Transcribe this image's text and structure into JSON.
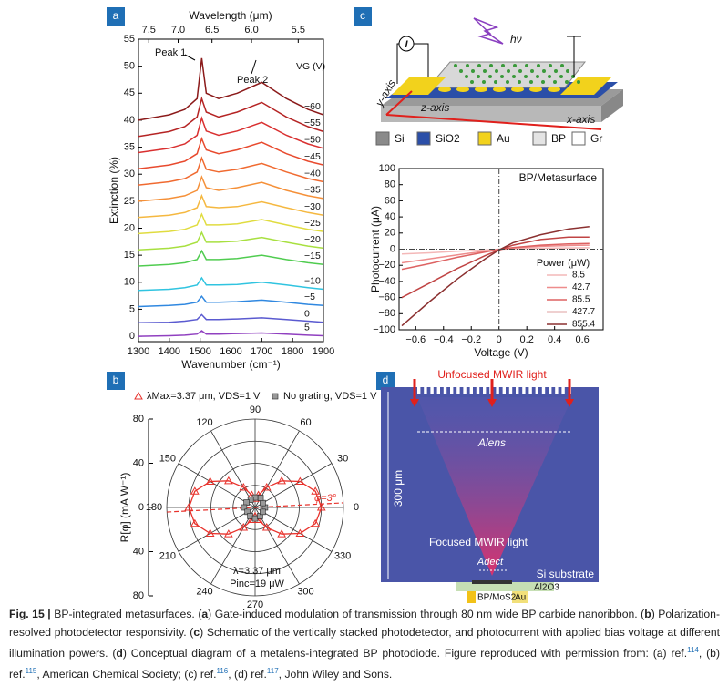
{
  "panel_labels": [
    "a",
    "b",
    "c",
    "d"
  ],
  "chart_data": [
    {
      "type": "line",
      "top_axis_label": "Wavelength (μm)",
      "x_label": "Wavenumber (cm⁻¹)",
      "y_label": "Extinction (%)",
      "xlim": [
        1300,
        1900
      ],
      "ylim": [
        -1,
        55
      ],
      "xticks": [
        1300,
        1400,
        1500,
        1600,
        1700,
        1800,
        1900
      ],
      "yticks": [
        0,
        5,
        10,
        15,
        20,
        25,
        30,
        35,
        40,
        45,
        50,
        55
      ],
      "x2ticks": [
        7.5,
        {
          "value": 7,
          "label": "7.0"
        },
        6.5,
        {
          "value": 6,
          "label": "6.0"
        },
        5.5
      ],
      "legend_title": "VG (V)",
      "annotations": [
        "Peak 1",
        "Peak 2"
      ],
      "x": [
        1300,
        1400,
        1450,
        1490,
        1505,
        1520,
        1560,
        1620,
        1700,
        1780,
        1850,
        1900
      ],
      "series": [
        {
          "name": "−60",
          "color": "#8b1a1a",
          "values": [
            40,
            41,
            42,
            44,
            51.5,
            45,
            44,
            45,
            47,
            44,
            42,
            41
          ]
        },
        {
          "name": "−55",
          "color": "#b52424",
          "values": [
            37,
            37.9,
            38.8,
            40.6,
            44,
            41.5,
            40.6,
            41.5,
            43.3,
            40.6,
            38.8,
            37.9
          ]
        },
        {
          "name": "−50",
          "color": "#d93030",
          "values": [
            34,
            34.8,
            35.6,
            37.2,
            40.4,
            38,
            37.2,
            38,
            39.6,
            37.2,
            35.6,
            34.8
          ]
        },
        {
          "name": "−45",
          "color": "#e84a2e",
          "values": [
            31,
            31.7,
            32.4,
            33.8,
            36.6,
            34.5,
            33.8,
            34.5,
            35.9,
            33.8,
            32.4,
            31.7
          ]
        },
        {
          "name": "−40",
          "color": "#f06a30",
          "values": [
            28,
            28.6,
            29.2,
            30.4,
            33,
            30.9,
            30.4,
            30.9,
            32,
            30.4,
            29.2,
            28.6
          ]
        },
        {
          "name": "−35",
          "color": "#f59038",
          "values": [
            25,
            25.5,
            26,
            27,
            29.5,
            27.5,
            27,
            27.5,
            28.5,
            27,
            26,
            25.5
          ]
        },
        {
          "name": "−30",
          "color": "#f5b840",
          "values": [
            22,
            22.4,
            22.9,
            23.8,
            26,
            24,
            23.8,
            24,
            24.9,
            23.8,
            22.9,
            22.4
          ]
        },
        {
          "name": "−25",
          "color": "#e0dc40",
          "values": [
            19,
            19.4,
            19.8,
            20.6,
            22.6,
            20.6,
            20.6,
            20.8,
            21.6,
            20.6,
            19.8,
            19.4
          ]
        },
        {
          "name": "−20",
          "color": "#a8e040",
          "values": [
            16,
            16.3,
            16.7,
            17.4,
            19.2,
            17.4,
            17.4,
            17.6,
            18.3,
            17.4,
            16.7,
            16.3
          ]
        },
        {
          "name": "−15",
          "color": "#50cc50",
          "values": [
            13,
            13.3,
            13.6,
            14.2,
            15.8,
            14.2,
            14.2,
            14.4,
            15,
            14.2,
            13.6,
            13.3
          ]
        },
        {
          "name": "−10",
          "color": "#30c4e0",
          "values": [
            8.5,
            8.7,
            9,
            9.5,
            10.8,
            9.5,
            9.5,
            9.6,
            10,
            9.5,
            9,
            8.7
          ]
        },
        {
          "name": "−5",
          "color": "#3088e0",
          "values": [
            5.5,
            5.7,
            5.9,
            6.3,
            7.4,
            6.3,
            6.3,
            6.4,
            6.7,
            6.3,
            5.9,
            5.7
          ]
        },
        {
          "name": "0",
          "color": "#5a5ad0",
          "values": [
            2.5,
            2.6,
            2.8,
            3.1,
            4,
            3.1,
            3.1,
            3.2,
            3.4,
            3.1,
            2.8,
            2.6
          ]
        },
        {
          "name": "5",
          "color": "#9040c0",
          "values": [
            0,
            0.1,
            0.2,
            0.4,
            1,
            0.4,
            0.4,
            0.5,
            0.6,
            0.4,
            0.2,
            0.1
          ]
        }
      ]
    },
    {
      "type": "polar",
      "r_label": "R[φ] (mA W⁻¹)",
      "rlim": [
        0,
        80
      ],
      "rticks": [
        0,
        40,
        80
      ],
      "rgrid": [
        20,
        40,
        60,
        80
      ],
      "thetaticks": [
        0,
        30,
        60,
        90,
        120,
        150,
        180,
        210,
        240,
        270,
        300,
        330
      ],
      "annotations": [
        "λ=3.37 μm",
        "Pinc=19 μW"
      ],
      "fit_line": {
        "value": 3,
        "label": "φ=3°"
      },
      "series": [
        {
          "name": "λMax=3.37 μm, VDS=1 V",
          "color": "#e8322c",
          "marker": "triangle",
          "theta": [
            0,
            15,
            30,
            45,
            60,
            75,
            90,
            105,
            120,
            135,
            150,
            165,
            180,
            195,
            210,
            225,
            240,
            255,
            270,
            285,
            300,
            315,
            330,
            345
          ],
          "values": [
            60,
            56.5,
            47,
            34,
            21,
            11.5,
            8,
            11.5,
            21,
            34,
            47,
            56.5,
            60,
            56.5,
            47,
            34,
            21,
            11.5,
            8,
            11.5,
            21,
            34,
            47,
            56.5
          ]
        },
        {
          "name": "No grating, VDS=1 V",
          "color": "#999999",
          "marker": "square",
          "theta": [
            0,
            30,
            60,
            90,
            120,
            150,
            180,
            210,
            240,
            270,
            300,
            330
          ],
          "values": [
            9,
            8,
            10,
            9,
            8,
            9,
            10,
            8,
            9,
            10,
            9,
            8
          ]
        }
      ]
    },
    {
      "type": "line",
      "title": "BP/Metasurface",
      "x_label": "Voltage (V)",
      "y_label": "Photocurrent (μA)",
      "xlim": [
        -0.72,
        0.75
      ],
      "ylim": [
        -100,
        100
      ],
      "xticks": [
        {
          "value": -0.6,
          "label": "−0.6"
        },
        {
          "value": -0.4,
          "label": "−0.4"
        },
        {
          "value": -0.2,
          "label": "−0.2"
        },
        0,
        0.2,
        0.4,
        0.6
      ],
      "yticks": [
        {
          "value": -100,
          "label": "−100"
        },
        {
          "value": -80,
          "label": "−80"
        },
        {
          "value": -60,
          "label": "−60"
        },
        {
          "value": -40,
          "label": "−40"
        },
        {
          "value": -20,
          "label": "−20"
        },
        0,
        20,
        40,
        60,
        80,
        100
      ],
      "legend_title": "Power (μW)",
      "x": [
        -0.7,
        -0.5,
        -0.3,
        -0.1,
        0,
        0.1,
        0.3,
        0.5,
        0.65
      ],
      "series": [
        {
          "name": "8.5",
          "color": "#f4b8b8",
          "values": [
            -6,
            -4.5,
            -2.5,
            -1,
            0,
            0.5,
            1.2,
            1.6,
            1.8
          ]
        },
        {
          "name": "42.7",
          "color": "#ee8c8c",
          "values": [
            -17,
            -12,
            -7,
            -2.5,
            -0.3,
            1.5,
            3.5,
            4.5,
            5
          ]
        },
        {
          "name": "85.5",
          "color": "#dd6262",
          "values": [
            -25,
            -18,
            -10,
            -3.5,
            -0.5,
            2,
            5,
            6.5,
            7
          ]
        },
        {
          "name": "427.7",
          "color": "#c04444",
          "values": [
            -60,
            -42,
            -24,
            -8,
            -1,
            5,
            12,
            15,
            15
          ]
        },
        {
          "name": "855.4",
          "color": "#8b3030",
          "values": [
            -95,
            -65,
            -37,
            -12,
            -1,
            8,
            18,
            25,
            28
          ]
        }
      ]
    }
  ],
  "schematic": {
    "light": "hν",
    "meter": "I",
    "axes": [
      "z-axis",
      "x-axis",
      "y-axis"
    ],
    "legend": [
      "Si",
      "SiO2",
      "Au",
      "BP",
      "Gr"
    ]
  },
  "diagram": {
    "top": "Unfocused MWIR light",
    "lens_area": "Alens",
    "thickness": "300 μm",
    "focus": "Focused MWIR light",
    "detector_area": "Adect",
    "substrate": "Si substrate",
    "oxide": "Al2O3",
    "junction": "BP/MoS2",
    "contact": "Au"
  },
  "caption": [
    {
      "text": "Fig. 15 |",
      "style": "bold"
    },
    {
      "text": " BP-integrated metasurfaces. (",
      "style": "plain"
    },
    {
      "text": "a",
      "style": "bold"
    },
    {
      "text": ") Gate-induced modulation of transmission through 80 nm wide BP carbide nanoribbon. (",
      "style": "plain"
    },
    {
      "text": "b",
      "style": "bold"
    },
    {
      "text": ") Polarization-resolved photodetector responsivity. (",
      "style": "plain"
    },
    {
      "text": "c",
      "style": "bold"
    },
    {
      "text": ") Schematic of the vertically stacked photodetector, and photocurrent with applied bias voltage at different illumination powers. (",
      "style": "plain"
    },
    {
      "text": "d",
      "style": "bold"
    },
    {
      "text": ") Conceptual diagram of a metalens-integrated BP photodiode. Figure reproduced with permission from: (a) ref.",
      "style": "plain"
    },
    {
      "text": "114",
      "style": "sup"
    },
    {
      "text": ", (b) ref.",
      "style": "plain"
    },
    {
      "text": "115",
      "style": "sup"
    },
    {
      "text": ", American Chemical Society; (c) ref.",
      "style": "plain"
    },
    {
      "text": "116",
      "style": "sup"
    },
    {
      "text": ", (d) ref.",
      "style": "plain"
    },
    {
      "text": "117",
      "style": "sup"
    },
    {
      "text": ", John Wiley and Sons.",
      "style": "plain"
    }
  ]
}
